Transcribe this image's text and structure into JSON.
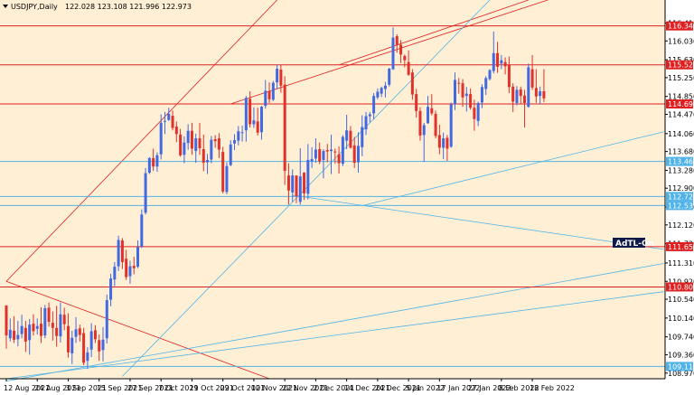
{
  "window": {
    "title": "USDJPY,Daily",
    "ohlc": "122.028 123.108 121.996 122.973",
    "menu_icon": "triangle-down-icon"
  },
  "colors": {
    "background": "#ffefd5",
    "bull": "#4169e1",
    "bear": "#e0312b",
    "red_line": "#e02020",
    "blue_line": "#4fb3e8",
    "annotation_bg": "#0d1a4a"
  },
  "annotation": {
    "text": "AdTL-On"
  },
  "chart_data": {
    "type": "candlestick",
    "symbol": "USDJPY",
    "timeframe": "Daily",
    "ylim": [
      108.85,
      116.9
    ],
    "y_ticks": [
      "116.410",
      "116.030",
      "115.630",
      "115.250",
      "114.850",
      "114.470",
      "114.060",
      "113.680",
      "113.280",
      "112.900",
      "112.500",
      "112.120",
      "111.720",
      "111.310",
      "110.920",
      "110.540",
      "110.140",
      "109.740",
      "109.360",
      "108.970"
    ],
    "x_ticks": [
      "12 Aug 2021",
      "24 Aug 2021",
      "3 Sep 2021",
      "15 Sep 2021",
      "27 Sep 2021",
      "7 Oct 2021",
      "19 Oct 2021",
      "29 Oct 2021",
      "10 Nov 2021",
      "22 Nov 2021",
      "2 Dec 2021",
      "14 Dec 2021",
      "24 Dec 2021",
      "5 Jan 2022",
      "17 Jan 2022",
      "27 Jan 2022",
      "8 Feb 2022",
      "18 Feb 2022"
    ],
    "levels": [
      {
        "value": "116.349",
        "color": "red"
      },
      {
        "value": "115.522",
        "color": "red"
      },
      {
        "value": "114.690",
        "color": "red"
      },
      {
        "value": "113.468",
        "color": "blue"
      },
      {
        "value": "112.724",
        "color": "blue"
      },
      {
        "value": "112.531",
        "color": "blue"
      },
      {
        "value": "111.657",
        "color": "red"
      },
      {
        "value": "110.801",
        "color": "red"
      },
      {
        "value": "109.111",
        "color": "blue"
      }
    ],
    "candles": [
      [
        110.41,
        110.4,
        109.49,
        109.77
      ],
      [
        109.71,
        110.13,
        109.64,
        109.89
      ],
      [
        109.87,
        110.18,
        109.61,
        109.68
      ],
      [
        109.69,
        110.08,
        109.54,
        109.78
      ],
      [
        109.8,
        110.21,
        109.71,
        109.97
      ],
      [
        109.93,
        110.08,
        109.42,
        109.64
      ],
      [
        109.67,
        110.12,
        109.36,
        110
      ],
      [
        110.02,
        110.22,
        109.77,
        109.86
      ],
      [
        109.91,
        110.13,
        109.79,
        109.97
      ],
      [
        110.02,
        110.37,
        109.61,
        109.76
      ],
      [
        109.77,
        110.42,
        109.71,
        110.35
      ],
      [
        110.36,
        110.47,
        109.96,
        110.06
      ],
      [
        110.04,
        110.28,
        109.66,
        109.93
      ],
      [
        109.93,
        110.4,
        109.53,
        109.76
      ],
      [
        109.75,
        110.47,
        109.62,
        110.22
      ],
      [
        110.21,
        110.36,
        109.88,
        110.01
      ],
      [
        109.97,
        110.24,
        109.3,
        109.41
      ],
      [
        109.39,
        109.87,
        109.16,
        109.72
      ],
      [
        109.74,
        110.16,
        109.61,
        109.9
      ],
      [
        109.92,
        110,
        109.64,
        109.78
      ],
      [
        109.82,
        109.93,
        109.14,
        109.19
      ],
      [
        109.23,
        109.52,
        109.06,
        109.41
      ],
      [
        109.47,
        110.03,
        109.31,
        109.86
      ],
      [
        109.88,
        109.99,
        109.61,
        109.69
      ],
      [
        109.67,
        109.79,
        109.23,
        109.43
      ],
      [
        109.46,
        109.95,
        109.22,
        109.68
      ],
      [
        109.71,
        110.64,
        109.6,
        110.52
      ],
      [
        110.53,
        111.08,
        110.39,
        110.98
      ],
      [
        110.96,
        111.33,
        110.82,
        111.23
      ],
      [
        111.24,
        111.89,
        111.14,
        111.8
      ],
      [
        111.79,
        111.84,
        111.18,
        111.33
      ],
      [
        111.4,
        111.59,
        110.95,
        111.01
      ],
      [
        111.03,
        111.36,
        110.87,
        111.24
      ],
      [
        111.25,
        111.44,
        111.07,
        111.2
      ],
      [
        111.23,
        111.79,
        111.2,
        111.65
      ],
      [
        111.66,
        112.45,
        111.63,
        112.34
      ],
      [
        112.38,
        113.33,
        112.34,
        113.22
      ],
      [
        113.23,
        113.56,
        113.2,
        113.54
      ],
      [
        113.54,
        113.74,
        113.27,
        113.36
      ],
      [
        113.36,
        113.66,
        113.25,
        113.6
      ],
      [
        113.62,
        114.47,
        113.51,
        114.29
      ],
      [
        114.32,
        114.52,
        114.05,
        114.33
      ],
      [
        114.35,
        114.61,
        114.33,
        114.48
      ],
      [
        114.44,
        114.55,
        114.13,
        114.18
      ],
      [
        114.21,
        114.32,
        113.88,
        114.05
      ],
      [
        114.04,
        114.16,
        113.57,
        113.6
      ],
      [
        113.61,
        114,
        113.43,
        113.87
      ],
      [
        113.86,
        114.26,
        113.72,
        114.12
      ],
      [
        114.12,
        114.29,
        113.61,
        113.74
      ],
      [
        113.69,
        114.06,
        113.44,
        113.96
      ],
      [
        113.96,
        114.29,
        113.61,
        113.75
      ],
      [
        113.73,
        114.04,
        113.26,
        113.44
      ],
      [
        113.45,
        113.63,
        113.2,
        113.5
      ],
      [
        113.51,
        114.01,
        113.43,
        113.93
      ],
      [
        113.94,
        114.03,
        113.76,
        113.9
      ],
      [
        113.96,
        114.07,
        113.54,
        113.72
      ],
      [
        113.67,
        113.78,
        112.79,
        112.83
      ],
      [
        112.82,
        113.45,
        112.77,
        113.37
      ],
      [
        113.39,
        113.92,
        113.37,
        113.83
      ],
      [
        113.85,
        114.05,
        113.71,
        113.92
      ],
      [
        113.91,
        114.22,
        113.81,
        114.11
      ],
      [
        114.08,
        114.23,
        113.89,
        114.09
      ],
      [
        114.13,
        114.86,
        113.89,
        114.82
      ],
      [
        114.8,
        114.96,
        114.19,
        114.26
      ],
      [
        114.26,
        114.62,
        114.18,
        114.34
      ],
      [
        114.32,
        114.61,
        114.02,
        114.08
      ],
      [
        114.09,
        114.65,
        113.93,
        114.63
      ],
      [
        114.65,
        115.2,
        114.59,
        114.97
      ],
      [
        114.96,
        115.15,
        114.71,
        114.79
      ],
      [
        114.78,
        115.18,
        114.75,
        115.14
      ],
      [
        115.15,
        115.53,
        115.01,
        115.44
      ],
      [
        115.42,
        115.52,
        114.93,
        115.08
      ],
      [
        115.1,
        115.28,
        112.97,
        113.27
      ],
      [
        113.17,
        113.43,
        112.55,
        112.85
      ],
      [
        112.81,
        113.3,
        112.61,
        113.17
      ],
      [
        113.17,
        113.17,
        112.58,
        112.73
      ],
      [
        112.61,
        113.75,
        112.55,
        113.15
      ],
      [
        113.23,
        113.24,
        112.65,
        112.79
      ],
      [
        112.78,
        113.84,
        112.66,
        113.5
      ],
      [
        113.47,
        113.77,
        113.33,
        113.52
      ],
      [
        113.53,
        113.96,
        113.44,
        113.72
      ],
      [
        113.73,
        113.87,
        113.41,
        113.47
      ],
      [
        113.5,
        113.73,
        113.11,
        113.69
      ],
      [
        113.71,
        113.84,
        113.45,
        113.68
      ],
      [
        113.69,
        114.04,
        113.2,
        113.72
      ],
      [
        113.68,
        113.74,
        113.42,
        113.66
      ],
      [
        113.62,
        113.79,
        113.21,
        113.43
      ],
      [
        113.42,
        114.03,
        113.37,
        113.99
      ],
      [
        113.91,
        114.46,
        113.73,
        114.13
      ],
      [
        114.12,
        114.22,
        113.74,
        113.76
      ],
      [
        113.81,
        113.99,
        113.33,
        113.44
      ],
      [
        113.45,
        114.09,
        113.23,
        113.8
      ],
      [
        113.77,
        114.45,
        113.58,
        114.2
      ],
      [
        114.15,
        114.52,
        114.03,
        114.43
      ],
      [
        114.43,
        114.52,
        114.3,
        114.47
      ],
      [
        114.49,
        114.92,
        114.36,
        114.86
      ],
      [
        114.83,
        115.02,
        114.79,
        114.95
      ],
      [
        114.91,
        115.06,
        114.84,
        115.03
      ],
      [
        115.01,
        115.16,
        114.83,
        115.08
      ],
      [
        115.1,
        115.46,
        115.06,
        115.44
      ],
      [
        115.43,
        116.32,
        115.41,
        116.1
      ],
      [
        116.13,
        116.17,
        115.78,
        115.94
      ],
      [
        115.95,
        116.05,
        115.56,
        115.74
      ],
      [
        115.71,
        115.74,
        115.47,
        115.62
      ],
      [
        115.58,
        115.83,
        115.29,
        115.31
      ],
      [
        115.36,
        115.43,
        114.78,
        114.89
      ],
      [
        114.9,
        115.01,
        114.4,
        114.54
      ],
      [
        114.54,
        114.62,
        113.91,
        114.02
      ],
      [
        114.03,
        114.29,
        113.46,
        114.24
      ],
      [
        114.28,
        114.86,
        114.27,
        114.63
      ],
      [
        114.6,
        114.9,
        114.45,
        114.49
      ],
      [
        114.48,
        114.55,
        113.96,
        114.01
      ],
      [
        114.03,
        114.25,
        113.62,
        113.76
      ],
      [
        113.76,
        114.08,
        113.52,
        113.96
      ],
      [
        113.97,
        114.03,
        113.48,
        113.74
      ],
      [
        113.78,
        114.72,
        113.76,
        114.68
      ],
      [
        114.68,
        115.36,
        114.56,
        115.2
      ],
      [
        115.14,
        115.24,
        114.91,
        115.13
      ],
      [
        115.13,
        115.22,
        114.63,
        114.83
      ],
      [
        114.86,
        115.05,
        114.53,
        114.91
      ],
      [
        114.9,
        115.02,
        114.57,
        114.61
      ],
      [
        114.61,
        114.78,
        114.12,
        114.37
      ],
      [
        114.33,
        114.74,
        114.22,
        114.71
      ],
      [
        114.72,
        115.11,
        114.6,
        115.05
      ],
      [
        115.01,
        115.28,
        114.88,
        115.24
      ],
      [
        115.22,
        115.43,
        115.19,
        115.41
      ],
      [
        115.39,
        116.23,
        115.34,
        115.77
      ],
      [
        115.77,
        116.01,
        115.35,
        115.48
      ],
      [
        115.55,
        115.73,
        115.43,
        115.62
      ],
      [
        115.58,
        115.68,
        115.32,
        115.49
      ],
      [
        115.52,
        115.7,
        114.92,
        115.05
      ],
      [
        115.06,
        115.13,
        114.52,
        114.74
      ],
      [
        114.71,
        115.07,
        114.66,
        114.99
      ],
      [
        115,
        115.06,
        114.69,
        114.86
      ],
      [
        114.87,
        114.99,
        114.19,
        114.71
      ],
      [
        114.63,
        115.55,
        114.61,
        115.47
      ],
      [
        115.43,
        115.73,
        114.99,
        115.04
      ],
      [
        115.03,
        115.43,
        114.71,
        114.85
      ],
      [
        114.86,
        115.06,
        114.68,
        114.96
      ],
      [
        114.96,
        115.43,
        114.73,
        114.81
      ]
    ]
  }
}
